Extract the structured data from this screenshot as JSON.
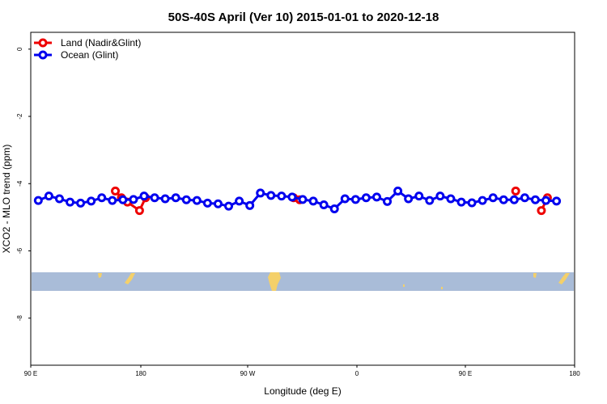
{
  "chart_data": {
    "type": "line",
    "title": "50S-40S April (Ver 10)   2015-01-01 to 2020-12-18",
    "xlabel": "Longitude (deg E)",
    "ylabel": "XCO2 - MLO trend (ppm)",
    "xlim": [
      90,
      450
    ],
    "ylim": [
      -9.4,
      0.5
    ],
    "x_ticks": [
      {
        "value": 90,
        "label": "90 E"
      },
      {
        "value": 180,
        "label": "180"
      },
      {
        "value": 270,
        "label": "90 W"
      },
      {
        "value": 360,
        "label": "0"
      },
      {
        "value": 450,
        "label": "90 E"
      },
      {
        "value": 540,
        "label": "180"
      }
    ],
    "y_ticks": [
      {
        "value": 0,
        "label": "0"
      },
      {
        "value": -2,
        "label": "-2"
      },
      {
        "value": -4,
        "label": "-4"
      },
      {
        "value": -6,
        "label": "-6"
      },
      {
        "value": -8,
        "label": "-8"
      }
    ],
    "legend_position": "top-left",
    "grid": false,
    "series": [
      {
        "name": "Land (Nadir&Glint)",
        "color": "#ee0000",
        "segments": [
          [
            [
              146,
              -4.22
            ],
            [
              150,
              -4.42
            ]
          ],
          [
            [
              154,
              -4.55
            ],
            [
              162,
              -4.8
            ],
            [
              166,
              -4.42
            ]
          ],
          [
            [
              264,
              -4.42
            ],
            [
              268,
              -4.48
            ]
          ],
          [
            [
              411,
              -4.22
            ]
          ],
          [
            [
              428,
              -4.8
            ],
            [
              432,
              -4.42
            ]
          ]
        ]
      },
      {
        "name": "Ocean (Glint)",
        "color": "#0000ee",
        "x": [
          95,
          102,
          109,
          116,
          123,
          130,
          137,
          144,
          151,
          158,
          165,
          172,
          179,
          186,
          193,
          200,
          207,
          214,
          221,
          228,
          235,
          242,
          249,
          256,
          263,
          270,
          277,
          284,
          291,
          298,
          305,
          312,
          319,
          326,
          333,
          340,
          347,
          354,
          361,
          368,
          375,
          382,
          389,
          396,
          403,
          410,
          417,
          424,
          431,
          438
        ],
        "values": [
          -4.5,
          -4.37,
          -4.45,
          -4.55,
          -4.58,
          -4.52,
          -4.42,
          -4.5,
          -4.48,
          -4.47,
          -4.37,
          -4.42,
          -4.45,
          -4.42,
          -4.48,
          -4.5,
          -4.58,
          -4.6,
          -4.67,
          -4.52,
          -4.65,
          -4.28,
          -4.35,
          -4.37,
          -4.4,
          -4.47,
          -4.52,
          -4.63,
          -4.75,
          -4.45,
          -4.47,
          -4.42,
          -4.4,
          -4.53,
          -4.22,
          -4.45,
          -4.37,
          -4.5,
          -4.37,
          -4.45,
          -4.55,
          -4.57,
          -4.5,
          -4.42,
          -4.48,
          -4.48,
          -4.42,
          -4.48,
          -4.5,
          -4.52
        ]
      }
    ],
    "inset_map": {
      "lat_band": "50S-40S",
      "ocean_color": "#a9bcd8",
      "land_color": "#f4d06a"
    }
  }
}
